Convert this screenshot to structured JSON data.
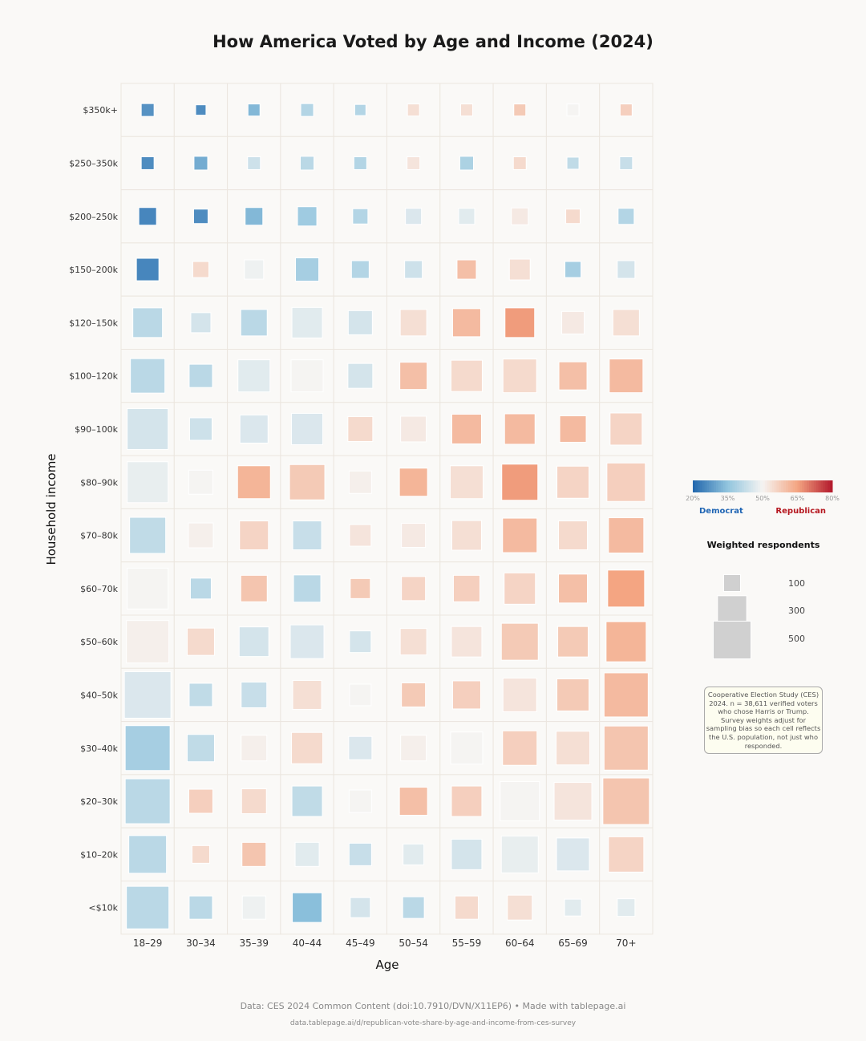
{
  "chart_data": {
    "type": "heatmap",
    "title": "How America Voted by Age and Income (2024)",
    "xlabel": "Age",
    "ylabel": "Household income",
    "x_categories": [
      "18–29",
      "30–34",
      "35–39",
      "40–44",
      "45–49",
      "50–54",
      "55–59",
      "60–64",
      "65–69",
      "70+"
    ],
    "y_categories": [
      "$350k+",
      "$250–350k",
      "$200–250k",
      "$150–200k",
      "$120–150k",
      "$100–120k",
      "$90–100k",
      "$80–90k",
      "$70–80k",
      "$60–70k",
      "$50–60k",
      "$40–50k",
      "$30–40k",
      "$20–30k",
      "$10–20k",
      "<$10k"
    ],
    "color_metric": "Republican vote share (%)",
    "size_metric": "Weighted respondents",
    "republican_share": [
      [
        27,
        26,
        33,
        40,
        40,
        54,
        54,
        58,
        50,
        57
      ],
      [
        26,
        31,
        44,
        41,
        40,
        53,
        39,
        55,
        42,
        43
      ],
      [
        25,
        26,
        33,
        37,
        40,
        46,
        47,
        52,
        55,
        40
      ],
      [
        25,
        55,
        49,
        38,
        40,
        44,
        60,
        54,
        38,
        45
      ],
      [
        41,
        45,
        41,
        47,
        45,
        54,
        61,
        66,
        52,
        54
      ],
      [
        41,
        41,
        47,
        50,
        45,
        60,
        55,
        55,
        60,
        61
      ],
      [
        45,
        44,
        46,
        46,
        55,
        52,
        61,
        61,
        61,
        56
      ],
      [
        48,
        50,
        62,
        58,
        51,
        62,
        54,
        66,
        56,
        57
      ],
      [
        42,
        51,
        56,
        43,
        53,
        52,
        54,
        61,
        55,
        61
      ],
      [
        50,
        41,
        59,
        41,
        58,
        56,
        57,
        56,
        60,
        65
      ],
      [
        51,
        55,
        45,
        46,
        45,
        54,
        53,
        58,
        58,
        62
      ],
      [
        46,
        42,
        43,
        54,
        50,
        58,
        57,
        53,
        58,
        61
      ],
      [
        38,
        42,
        51,
        55,
        46,
        51,
        50,
        57,
        54,
        59
      ],
      [
        41,
        57,
        55,
        42,
        50,
        60,
        57,
        50,
        53,
        59
      ],
      [
        41,
        55,
        59,
        47,
        43,
        47,
        45,
        48,
        46,
        56
      ],
      [
        41,
        41,
        49,
        34,
        45,
        41,
        55,
        54,
        47,
        47
      ]
    ],
    "respondents": [
      [
        58,
        38,
        51,
        58,
        44,
        51,
        51,
        51,
        51,
        51
      ],
      [
        58,
        66,
        58,
        66,
        58,
        58,
        66,
        58,
        51,
        58
      ],
      [
        110,
        73,
        110,
        131,
        82,
        91,
        91,
        100,
        73,
        91
      ],
      [
        178,
        91,
        131,
        191,
        110,
        110,
        131,
        153,
        91,
        110
      ],
      [
        310,
        142,
        247,
        327,
        204,
        247,
        278,
        310,
        178,
        247
      ],
      [
        419,
        191,
        363,
        363,
        218,
        262,
        345,
        400,
        278,
        400
      ],
      [
        590,
        178,
        278,
        345,
        218,
        232,
        310,
        327,
        247,
        363
      ],
      [
        590,
        204,
        381,
        439,
        178,
        278,
        381,
        459,
        363,
        522
      ],
      [
        459,
        218,
        294,
        294,
        165,
        204,
        310,
        419,
        294,
        439
      ],
      [
        590,
        153,
        247,
        262,
        142,
        204,
        247,
        345,
        294,
        480
      ],
      [
        637,
        262,
        310,
        400,
        165,
        247,
        327,
        480,
        327,
        567
      ],
      [
        763,
        191,
        232,
        294,
        165,
        204,
        278,
        400,
        363,
        686
      ],
      [
        711,
        262,
        232,
        345,
        191,
        232,
        363,
        419,
        400,
        686
      ],
      [
        711,
        204,
        218,
        327,
        178,
        278,
        327,
        544,
        501,
        763
      ],
      [
        501,
        110,
        204,
        204,
        178,
        153,
        327,
        480,
        381,
        439
      ],
      [
        637,
        191,
        191,
        310,
        142,
        165,
        191,
        218,
        100,
        110
      ]
    ],
    "colorbar": {
      "ticks": [
        "20%",
        "35%",
        "50%",
        "65%",
        "80%"
      ],
      "range": [
        20,
        80
      ],
      "left_label": "Democrat",
      "right_label": "Republican"
    },
    "size_legend": {
      "title": "Weighted respondents",
      "values": [
        100,
        300,
        500
      ],
      "labels": [
        "100",
        "300",
        "500"
      ]
    },
    "colors": {
      "democrat": "#1f65b4",
      "republican": "#b5161e",
      "grid": "#ece6df"
    }
  },
  "note": "Cooperative Election Study (CES) 2024. n = 38,611 verified voters who chose Harris or Trump. Survey weights adjust for sampling bias so each cell reflects the U.S. population, not just who responded.",
  "footer": {
    "source": "Data: CES 2024 Common Content (doi:10.7910/DVN/X11EP6)  •  Made with tablepage.ai",
    "url": "data.tablepage.ai/d/republican-vote-share-by-age-and-income-from-ces-survey"
  }
}
